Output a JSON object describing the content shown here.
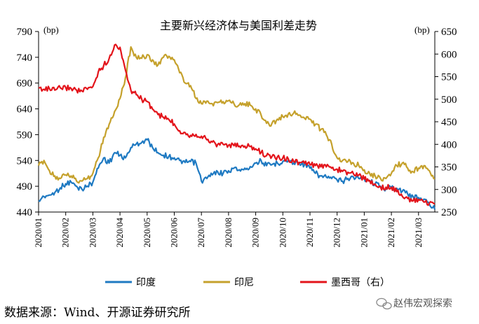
{
  "chart_data": {
    "type": "line",
    "title": "主要新兴经济体与美国利差走势",
    "left_axis": {
      "unit": "(bp)",
      "ylim": [
        440,
        790
      ],
      "ticks": [
        440,
        490,
        540,
        590,
        640,
        690,
        740,
        790
      ]
    },
    "right_axis": {
      "unit": "(bp)",
      "ylim": [
        250,
        650
      ],
      "ticks": [
        250,
        300,
        350,
        400,
        450,
        500,
        550,
        600,
        650
      ]
    },
    "x_ticks": [
      "2020/01",
      "2020/02",
      "2020/03",
      "2020/04",
      "2020/05",
      "2020/06",
      "2020/07",
      "2020/08",
      "2020/09",
      "2020/10",
      "2020/11",
      "2020/12",
      "2021/01",
      "2021/02",
      "2021/03"
    ],
    "x_range_months": [
      0,
      14.6
    ],
    "legend_position": "bottom",
    "series": [
      {
        "name": "印度",
        "axis": "left",
        "color": "#1F7AC2",
        "points": [
          [
            0,
            462
          ],
          [
            0.2,
            470
          ],
          [
            0.4,
            473
          ],
          [
            0.6,
            478
          ],
          [
            0.8,
            487
          ],
          [
            1.0,
            495
          ],
          [
            1.2,
            498
          ],
          [
            1.4,
            490
          ],
          [
            1.6,
            484
          ],
          [
            1.8,
            490
          ],
          [
            2.0,
            498
          ],
          [
            2.2,
            525
          ],
          [
            2.4,
            545
          ],
          [
            2.6,
            535
          ],
          [
            2.8,
            555
          ],
          [
            3.0,
            550
          ],
          [
            3.2,
            545
          ],
          [
            3.4,
            565
          ],
          [
            3.6,
            572
          ],
          [
            3.8,
            575
          ],
          [
            4.0,
            580
          ],
          [
            4.2,
            565
          ],
          [
            4.4,
            555
          ],
          [
            4.6,
            550
          ],
          [
            4.8,
            548
          ],
          [
            5.0,
            545
          ],
          [
            5.2,
            540
          ],
          [
            5.4,
            536
          ],
          [
            5.6,
            538
          ],
          [
            5.8,
            535
          ],
          [
            6.0,
            500
          ],
          [
            6.2,
            505
          ],
          [
            6.4,
            512
          ],
          [
            6.6,
            518
          ],
          [
            6.8,
            515
          ],
          [
            7.0,
            520
          ],
          [
            7.2,
            525
          ],
          [
            7.4,
            522
          ],
          [
            7.6,
            525
          ],
          [
            7.8,
            528
          ],
          [
            8.0,
            535
          ],
          [
            8.2,
            540
          ],
          [
            8.4,
            530
          ],
          [
            8.6,
            532
          ],
          [
            8.8,
            535
          ],
          [
            9.0,
            538
          ],
          [
            9.2,
            540
          ],
          [
            9.4,
            535
          ],
          [
            9.6,
            536
          ],
          [
            9.8,
            532
          ],
          [
            10.0,
            525
          ],
          [
            10.2,
            515
          ],
          [
            10.4,
            510
          ],
          [
            10.6,
            508
          ],
          [
            10.8,
            505
          ],
          [
            11.0,
            502
          ],
          [
            11.2,
            500
          ],
          [
            11.4,
            505
          ],
          [
            11.6,
            508
          ],
          [
            11.8,
            505
          ],
          [
            12.0,
            505
          ],
          [
            12.2,
            500
          ],
          [
            12.4,
            495
          ],
          [
            12.6,
            490
          ],
          [
            12.8,
            485
          ],
          [
            13.0,
            488
          ],
          [
            13.2,
            486
          ],
          [
            13.4,
            480
          ],
          [
            13.6,
            475
          ],
          [
            13.8,
            470
          ],
          [
            14.0,
            468
          ],
          [
            14.2,
            465
          ],
          [
            14.4,
            455
          ],
          [
            14.6,
            445
          ]
        ]
      },
      {
        "name": "印尼",
        "axis": "left",
        "color": "#C5A12C",
        "points": [
          [
            0,
            530
          ],
          [
            0.2,
            540
          ],
          [
            0.4,
            520
          ],
          [
            0.6,
            510
          ],
          [
            0.8,
            505
          ],
          [
            1.0,
            512
          ],
          [
            1.2,
            510
          ],
          [
            1.4,
            500
          ],
          [
            1.6,
            500
          ],
          [
            1.8,
            505
          ],
          [
            2.0,
            515
          ],
          [
            2.2,
            545
          ],
          [
            2.4,
            585
          ],
          [
            2.6,
            610
          ],
          [
            2.8,
            635
          ],
          [
            3.0,
            660
          ],
          [
            3.2,
            700
          ],
          [
            3.4,
            760
          ],
          [
            3.6,
            740
          ],
          [
            3.8,
            738
          ],
          [
            4.0,
            745
          ],
          [
            4.2,
            735
          ],
          [
            4.4,
            725
          ],
          [
            4.6,
            740
          ],
          [
            4.8,
            742
          ],
          [
            5.0,
            735
          ],
          [
            5.2,
            710
          ],
          [
            5.4,
            690
          ],
          [
            5.6,
            685
          ],
          [
            5.8,
            660
          ],
          [
            6.0,
            650
          ],
          [
            6.2,
            655
          ],
          [
            6.4,
            650
          ],
          [
            6.6,
            652
          ],
          [
            6.8,
            654
          ],
          [
            7.0,
            656
          ],
          [
            7.2,
            650
          ],
          [
            7.4,
            648
          ],
          [
            7.6,
            650
          ],
          [
            7.8,
            647
          ],
          [
            8.0,
            640
          ],
          [
            8.2,
            628
          ],
          [
            8.4,
            612
          ],
          [
            8.6,
            612
          ],
          [
            8.8,
            620
          ],
          [
            9.0,
            625
          ],
          [
            9.2,
            630
          ],
          [
            9.4,
            632
          ],
          [
            9.6,
            628
          ],
          [
            9.8,
            622
          ],
          [
            10.0,
            620
          ],
          [
            10.2,
            610
          ],
          [
            10.4,
            600
          ],
          [
            10.6,
            590
          ],
          [
            10.8,
            572
          ],
          [
            11.0,
            545
          ],
          [
            11.2,
            540
          ],
          [
            11.4,
            538
          ],
          [
            11.6,
            535
          ],
          [
            11.8,
            530
          ],
          [
            12.0,
            522
          ],
          [
            12.2,
            515
          ],
          [
            12.4,
            510
          ],
          [
            12.6,
            505
          ],
          [
            12.8,
            505
          ],
          [
            13.0,
            515
          ],
          [
            13.2,
            530
          ],
          [
            13.4,
            535
          ],
          [
            13.6,
            525
          ],
          [
            13.8,
            518
          ],
          [
            14.0,
            525
          ],
          [
            14.2,
            530
          ],
          [
            14.4,
            520
          ],
          [
            14.6,
            505
          ]
        ]
      },
      {
        "name": "墨西哥（右）",
        "axis": "right",
        "color": "#E3141B",
        "points": [
          [
            0,
            525
          ],
          [
            0.2,
            522
          ],
          [
            0.4,
            523
          ],
          [
            0.6,
            520
          ],
          [
            0.8,
            525
          ],
          [
            1.0,
            526
          ],
          [
            1.2,
            524
          ],
          [
            1.4,
            520
          ],
          [
            1.6,
            518
          ],
          [
            1.8,
            522
          ],
          [
            2.0,
            528
          ],
          [
            2.2,
            560
          ],
          [
            2.4,
            575
          ],
          [
            2.6,
            590
          ],
          [
            2.8,
            620
          ],
          [
            3.0,
            615
          ],
          [
            3.2,
            565
          ],
          [
            3.4,
            520
          ],
          [
            3.6,
            510
          ],
          [
            3.8,
            500
          ],
          [
            4.0,
            495
          ],
          [
            4.2,
            478
          ],
          [
            4.4,
            466
          ],
          [
            4.6,
            460
          ],
          [
            4.8,
            455
          ],
          [
            5.0,
            445
          ],
          [
            5.2,
            430
          ],
          [
            5.4,
            426
          ],
          [
            5.6,
            420
          ],
          [
            5.8,
            422
          ],
          [
            6.0,
            418
          ],
          [
            6.2,
            410
          ],
          [
            6.4,
            405
          ],
          [
            6.6,
            400
          ],
          [
            6.8,
            400
          ],
          [
            7.0,
            398
          ],
          [
            7.2,
            397
          ],
          [
            7.4,
            396
          ],
          [
            7.6,
            396
          ],
          [
            7.8,
            395
          ],
          [
            8.0,
            390
          ],
          [
            8.2,
            382
          ],
          [
            8.4,
            375
          ],
          [
            8.6,
            373
          ],
          [
            8.8,
            372
          ],
          [
            9.0,
            370
          ],
          [
            9.2,
            368
          ],
          [
            9.4,
            362
          ],
          [
            9.6,
            360
          ],
          [
            9.8,
            358
          ],
          [
            10.0,
            355
          ],
          [
            10.2,
            353
          ],
          [
            10.4,
            350
          ],
          [
            10.6,
            350
          ],
          [
            10.8,
            347
          ],
          [
            11.0,
            345
          ],
          [
            11.2,
            340
          ],
          [
            11.4,
            338
          ],
          [
            11.6,
            335
          ],
          [
            11.8,
            332
          ],
          [
            12.0,
            323
          ],
          [
            12.2,
            320
          ],
          [
            12.4,
            312
          ],
          [
            12.6,
            305
          ],
          [
            12.8,
            305
          ],
          [
            13.0,
            305
          ],
          [
            13.2,
            295
          ],
          [
            13.4,
            285
          ],
          [
            13.6,
            280
          ],
          [
            13.8,
            275
          ],
          [
            14.0,
            278
          ],
          [
            14.2,
            272
          ],
          [
            14.4,
            270
          ],
          [
            14.6,
            268
          ]
        ]
      }
    ]
  },
  "source": "数据来源：Wind、开源证券研究所",
  "watermark": "赵伟宏观探索"
}
